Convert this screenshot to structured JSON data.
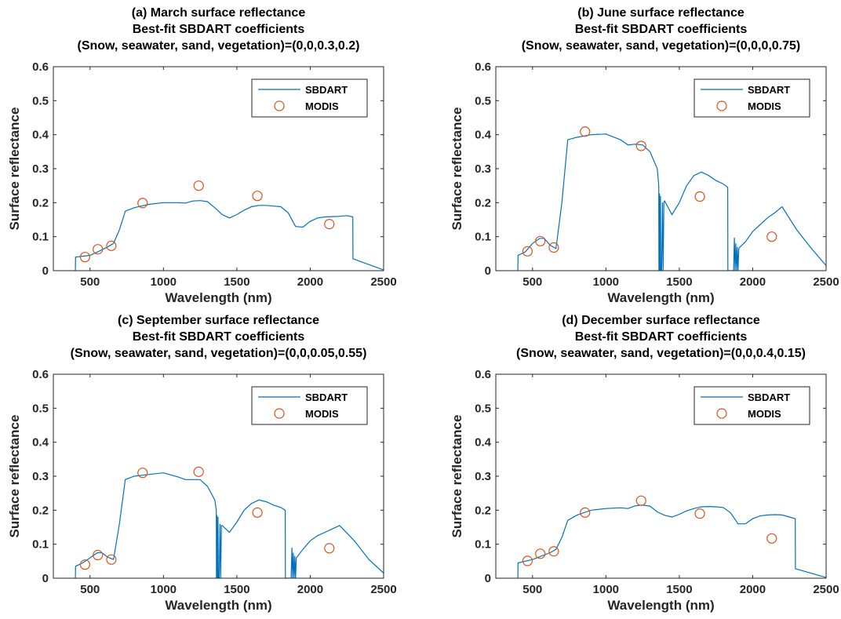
{
  "figure": {
    "line_color": "#0072BD",
    "marker_color": "#D95319"
  },
  "chart_data": [
    {
      "type": "line",
      "title": [
        "(a) March surface reflectance",
        "Best-fit SBDART coefficients",
        "(Snow, seawater, sand, vegetation)=(0,0,0.3,0.2)"
      ],
      "xlabel": "Wavelength (nm)",
      "ylabel": "Surface reflectance",
      "xlim": [
        250,
        2500
      ],
      "ylim": [
        0,
        0.6
      ],
      "xticks": [
        500,
        1000,
        1500,
        2000,
        2500
      ],
      "yticks": [
        0,
        0.1,
        0.2,
        0.3,
        0.4,
        0.5,
        0.6
      ],
      "grid": false,
      "legend": {
        "position": "top-right",
        "entries": [
          "SBDART",
          "MODIS"
        ]
      },
      "series": [
        {
          "name": "SBDART",
          "kind": "line",
          "x": [
            400,
            401,
            500,
            560,
            620,
            660,
            700,
            740,
            800,
            900,
            1000,
            1100,
            1150,
            1200,
            1250,
            1300,
            1350,
            1400,
            1450,
            1500,
            1550,
            1600,
            1650,
            1700,
            1750,
            1800,
            1850,
            1900,
            1950,
            2000,
            2050,
            2100,
            2150,
            2200,
            2250,
            2290,
            2291,
            2500
          ],
          "y": [
            0,
            0.04,
            0.045,
            0.057,
            0.07,
            0.08,
            0.12,
            0.175,
            0.185,
            0.195,
            0.2,
            0.2,
            0.199,
            0.205,
            0.206,
            0.203,
            0.185,
            0.165,
            0.155,
            0.165,
            0.178,
            0.188,
            0.192,
            0.192,
            0.19,
            0.188,
            0.17,
            0.13,
            0.128,
            0.145,
            0.155,
            0.158,
            0.159,
            0.16,
            0.162,
            0.158,
            0.035,
            0.002
          ]
        },
        {
          "name": "MODIS",
          "kind": "markers",
          "x": [
            466,
            553,
            645,
            858,
            1240,
            1640,
            2130
          ],
          "y": [
            0.04,
            0.063,
            0.073,
            0.199,
            0.25,
            0.22,
            0.137
          ]
        }
      ]
    },
    {
      "type": "line",
      "title": [
        "(b) June surface reflectance",
        "Best-fit SBDART coefficients",
        "(Snow, seawater, sand, vegetation)=(0,0,0,0.75)"
      ],
      "xlabel": "Wavelength (nm)",
      "ylabel": "Surface reflectance",
      "xlim": [
        250,
        2500
      ],
      "ylim": [
        0,
        0.6
      ],
      "xticks": [
        500,
        1000,
        1500,
        2000,
        2500
      ],
      "yticks": [
        0,
        0.1,
        0.2,
        0.3,
        0.4,
        0.5,
        0.6
      ],
      "grid": false,
      "legend": {
        "position": "top-right",
        "entries": [
          "SBDART",
          "MODIS"
        ]
      },
      "series": [
        {
          "name": "SBDART",
          "kind": "line",
          "x": [
            400,
            401,
            450,
            500,
            550,
            580,
            620,
            660,
            700,
            740,
            800,
            900,
            1000,
            1100,
            1150,
            1200,
            1250,
            1300,
            1350,
            1360,
            1361,
            1365,
            1366,
            1370,
            1372,
            1374,
            1380,
            1385,
            1390,
            1395,
            1400,
            1450,
            1500,
            1550,
            1600,
            1650,
            1700,
            1750,
            1800,
            1830,
            1831,
            1870,
            1875,
            1880,
            1885,
            1890,
            1895,
            1900,
            1905,
            1910,
            1950,
            2000,
            2050,
            2100,
            2150,
            2200,
            2300,
            2400,
            2500
          ],
          "y": [
            0,
            0.045,
            0.055,
            0.08,
            0.095,
            0.095,
            0.075,
            0.065,
            0.2,
            0.385,
            0.392,
            0.4,
            0.402,
            0.385,
            0.37,
            0.372,
            0.37,
            0.35,
            0.3,
            0.25,
            0,
            0.227,
            0,
            0,
            0.22,
            0,
            0,
            0.2,
            0,
            0.2,
            0.205,
            0.165,
            0.2,
            0.25,
            0.28,
            0.29,
            0.28,
            0.265,
            0.255,
            0.245,
            0,
            0,
            0.097,
            0,
            0.08,
            0,
            0.07,
            0,
            0.065,
            0.068,
            0.085,
            0.115,
            0.135,
            0.155,
            0.17,
            0.188,
            0.12,
            0.065,
            0.015
          ]
        },
        {
          "name": "MODIS",
          "kind": "markers",
          "x": [
            466,
            553,
            645,
            858,
            1240,
            1640,
            2130
          ],
          "y": [
            0.057,
            0.087,
            0.068,
            0.409,
            0.367,
            0.218,
            0.1
          ]
        }
      ]
    },
    {
      "type": "line",
      "title": [
        "(c) September surface reflectance",
        "Best-fit SBDART coefficients",
        "(Snow, seawater, sand, vegetation)=(0,0,0.05,0.55)"
      ],
      "xlabel": "Wavelength (nm)",
      "ylabel": "Surface reflectance",
      "xlim": [
        250,
        2500
      ],
      "ylim": [
        0,
        0.6
      ],
      "xticks": [
        500,
        1000,
        1500,
        2000,
        2500
      ],
      "yticks": [
        0,
        0.1,
        0.2,
        0.3,
        0.4,
        0.5,
        0.6
      ],
      "grid": false,
      "legend": {
        "position": "top-right",
        "entries": [
          "SBDART",
          "MODIS"
        ]
      },
      "series": [
        {
          "name": "SBDART",
          "kind": "line",
          "x": [
            400,
            401,
            450,
            500,
            550,
            580,
            620,
            660,
            700,
            740,
            800,
            900,
            1000,
            1100,
            1150,
            1200,
            1250,
            1300,
            1350,
            1360,
            1361,
            1365,
            1366,
            1370,
            1372,
            1374,
            1380,
            1385,
            1390,
            1395,
            1400,
            1450,
            1500,
            1550,
            1600,
            1650,
            1700,
            1750,
            1800,
            1830,
            1831,
            1870,
            1875,
            1880,
            1885,
            1890,
            1895,
            1900,
            1905,
            1910,
            1950,
            2000,
            2050,
            2100,
            2150,
            2200,
            2300,
            2400,
            2500
          ],
          "y": [
            0,
            0.035,
            0.045,
            0.06,
            0.075,
            0.075,
            0.062,
            0.055,
            0.16,
            0.29,
            0.3,
            0.305,
            0.31,
            0.298,
            0.29,
            0.29,
            0.29,
            0.27,
            0.23,
            0.2,
            0,
            0.185,
            0,
            0,
            0.18,
            0,
            0,
            0.16,
            0,
            0.155,
            0.155,
            0.135,
            0.165,
            0.2,
            0.22,
            0.23,
            0.225,
            0.215,
            0.208,
            0.2,
            0,
            0,
            0.09,
            0,
            0.075,
            0,
            0.065,
            0,
            0.06,
            0.062,
            0.085,
            0.11,
            0.125,
            0.135,
            0.145,
            0.155,
            0.11,
            0.055,
            0.015
          ]
        },
        {
          "name": "MODIS",
          "kind": "markers",
          "x": [
            466,
            553,
            645,
            858,
            1240,
            1640,
            2130
          ],
          "y": [
            0.04,
            0.068,
            0.055,
            0.31,
            0.313,
            0.193,
            0.088
          ]
        }
      ]
    },
    {
      "type": "line",
      "title": [
        "(d) December surface reflectance",
        "Best-fit SBDART coefficients",
        "(Snow, seawater, sand, vegetation)=(0,0,0.4,0.15)"
      ],
      "xlabel": "Wavelength (nm)",
      "ylabel": "Surface reflectance",
      "xlim": [
        250,
        2500
      ],
      "ylim": [
        0,
        0.6
      ],
      "xticks": [
        500,
        1000,
        1500,
        2000,
        2500
      ],
      "yticks": [
        0,
        0.1,
        0.2,
        0.3,
        0.4,
        0.5,
        0.6
      ],
      "grid": false,
      "legend": {
        "position": "top-right",
        "entries": [
          "SBDART",
          "MODIS"
        ]
      },
      "series": [
        {
          "name": "SBDART",
          "kind": "line",
          "x": [
            400,
            401,
            500,
            560,
            620,
            660,
            700,
            740,
            800,
            900,
            1000,
            1100,
            1150,
            1200,
            1250,
            1300,
            1350,
            1400,
            1450,
            1500,
            1550,
            1600,
            1650,
            1700,
            1750,
            1800,
            1850,
            1900,
            1950,
            2000,
            2050,
            2100,
            2150,
            2200,
            2250,
            2290,
            2291,
            2500
          ],
          "y": [
            0,
            0.045,
            0.055,
            0.065,
            0.075,
            0.085,
            0.12,
            0.17,
            0.185,
            0.2,
            0.205,
            0.207,
            0.205,
            0.213,
            0.215,
            0.212,
            0.195,
            0.185,
            0.18,
            0.188,
            0.198,
            0.205,
            0.21,
            0.211,
            0.21,
            0.208,
            0.192,
            0.16,
            0.16,
            0.175,
            0.183,
            0.186,
            0.187,
            0.186,
            0.18,
            0.175,
            0.028,
            0.002
          ]
        },
        {
          "name": "MODIS",
          "kind": "markers",
          "x": [
            466,
            553,
            645,
            858,
            1240,
            1640,
            2130
          ],
          "y": [
            0.051,
            0.072,
            0.079,
            0.193,
            0.228,
            0.19,
            0.117
          ]
        }
      ]
    }
  ]
}
